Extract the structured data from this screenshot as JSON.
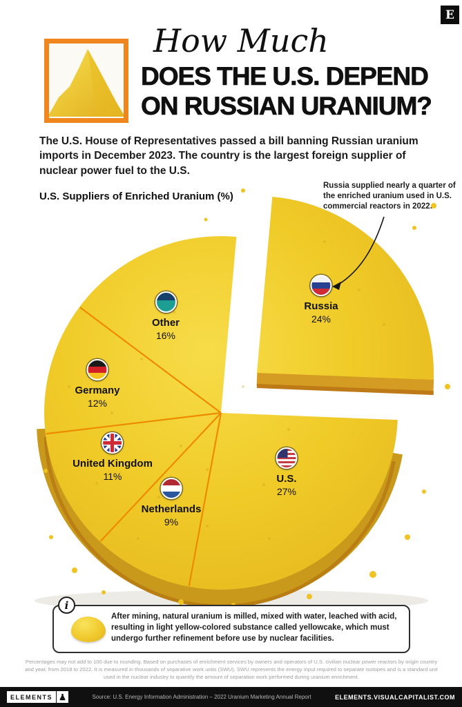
{
  "logo_letter": "E",
  "header": {
    "title_script": "How Much",
    "title_line1": "DOES THE U.S. DEPEND",
    "title_line2": "ON RUSSIAN URANIUM?",
    "intro": "The U.S. House of Representatives passed a bill banning Russian uranium imports in December 2023. The country is the largest foreign supplier of nuclear power fuel to the U.S."
  },
  "chart": {
    "label": "U.S. Suppliers of Enriched Uranium (%)",
    "annotation": "Russia supplied nearly a quarter of the enriched uranium used in U.S. commercial reactors in 2022."
  },
  "slices": [
    {
      "name": "Russia",
      "pct": "24%"
    },
    {
      "name": "U.S.",
      "pct": "27%"
    },
    {
      "name": "Netherlands",
      "pct": "9%"
    },
    {
      "name": "United Kingdom",
      "pct": "11%"
    },
    {
      "name": "Germany",
      "pct": "12%"
    },
    {
      "name": "Other",
      "pct": "16%"
    }
  ],
  "chart_data": {
    "type": "pie",
    "title": "U.S. Suppliers of Enriched Uranium (%)",
    "categories": [
      "Russia",
      "U.S.",
      "Netherlands",
      "United Kingdom",
      "Germany",
      "Other"
    ],
    "values": [
      24,
      27,
      9,
      11,
      12,
      16
    ],
    "unit": "%",
    "exploded": "Russia",
    "annotation": "Russia supplied nearly a quarter of the enriched uranium used in U.S. commercial reactors in 2022.",
    "note": "Percentages may not add to 100 due to rounding."
  },
  "infobox": {
    "icon": "i",
    "text": "After mining, natural uranium is milled, mixed with water, leached with acid, resulting in light yellow-colored substance called yellowcake, which must undergo further refinement before use by nuclear facilities."
  },
  "footnote": "Percentages may not add to 100 due to rounding. Based on purchases of enrichment services by owners and operators of U.S. civilian nuclear power reactors by origin country and year, from 2018 to 2022. It is measured in thousands of separative work units (SWU). SWU represents the energy input required to separate isotopes and is a standard unit used in the nuclear industry to quantify the amount of separation work performed during uranium enrichment.",
  "footer": {
    "brand": "ELEMENTS",
    "source": "Source: U.S. Energy Information Administration – 2022 Uranium Marketing Annual Report",
    "site": "ELEMENTS.VISUALCAPITALIST.COM"
  },
  "colors": {
    "accent_orange": "#F0861E",
    "cake_yellow": "#F0CB28",
    "divider_orange": "#EE8A00"
  }
}
